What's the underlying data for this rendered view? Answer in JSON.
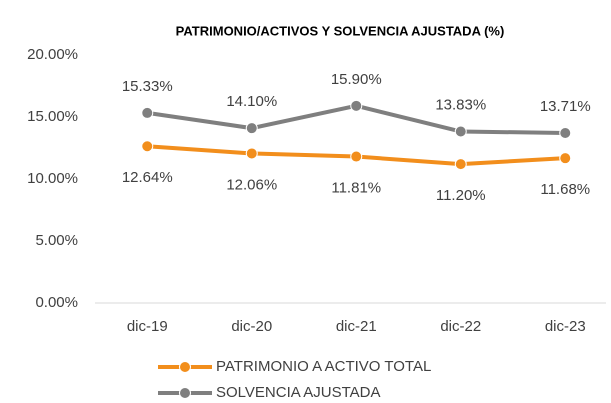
{
  "chart_data": {
    "type": "line",
    "title": "PATRIMONIO/ACTIVOS Y SOLVENCIA AJUSTADA (%)",
    "categories": [
      "dic-19",
      "dic-20",
      "dic-21",
      "dic-22",
      "dic-23"
    ],
    "series": [
      {
        "name": "PATRIMONIO A ACTIVO TOTAL",
        "color": "#f28e1c",
        "values": [
          12.64,
          12.06,
          11.81,
          11.2,
          11.68
        ],
        "value_labels": [
          "12.64%",
          "12.06%",
          "11.81%",
          "11.20%",
          "11.68%"
        ]
      },
      {
        "name": "SOLVENCIA AJUSTADA",
        "color": "#7f7f7f",
        "values": [
          15.33,
          14.1,
          15.9,
          13.83,
          13.71
        ],
        "value_labels": [
          "15.33%",
          "14.10%",
          "15.90%",
          "13.83%",
          "13.71%"
        ]
      }
    ],
    "ylim": [
      0,
      20
    ],
    "yticks": [
      {
        "value": 0,
        "label": "0.00%"
      },
      {
        "value": 5,
        "label": "5.00%"
      },
      {
        "value": 10,
        "label": "10.00%"
      },
      {
        "value": 15,
        "label": "15.00%"
      },
      {
        "value": 20,
        "label": "20.00%"
      }
    ],
    "grid": false
  }
}
